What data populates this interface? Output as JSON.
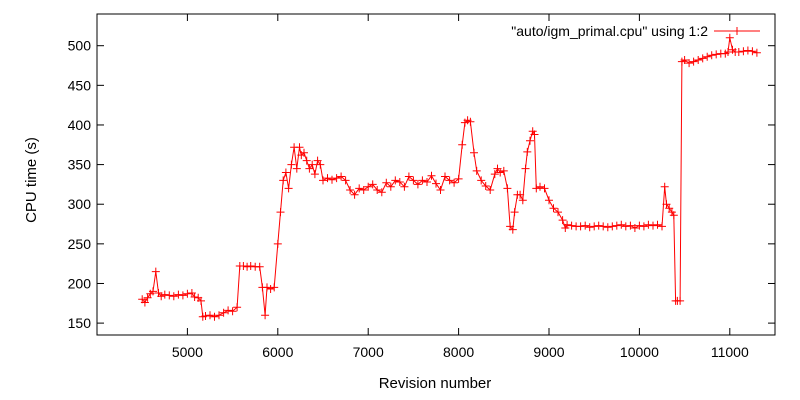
{
  "chart_data": {
    "type": "line",
    "xlabel": "Revision number",
    "ylabel": "CPU time (s)",
    "xlim": [
      4000,
      11500
    ],
    "ylim": [
      135,
      540
    ],
    "xticks": [
      5000,
      6000,
      7000,
      8000,
      9000,
      10000,
      11000
    ],
    "yticks": [
      150,
      200,
      250,
      300,
      350,
      400,
      450,
      500
    ],
    "grid": false,
    "legend_position": "top-right",
    "series": [
      {
        "name": "\"auto/igm_primal.cpu\" using 1:2",
        "color": "#ff0000",
        "marker": "plus",
        "points": [
          [
            4500,
            180
          ],
          [
            4530,
            176
          ],
          [
            4560,
            182
          ],
          [
            4590,
            187
          ],
          [
            4620,
            190
          ],
          [
            4650,
            215
          ],
          [
            4680,
            188
          ],
          [
            4710,
            184
          ],
          [
            4750,
            186
          ],
          [
            4800,
            185
          ],
          [
            4850,
            184
          ],
          [
            4900,
            186
          ],
          [
            4950,
            185
          ],
          [
            5000,
            187
          ],
          [
            5050,
            188
          ],
          [
            5080,
            183
          ],
          [
            5120,
            182
          ],
          [
            5150,
            178
          ],
          [
            5170,
            158
          ],
          [
            5200,
            159
          ],
          [
            5250,
            160
          ],
          [
            5300,
            158
          ],
          [
            5350,
            160
          ],
          [
            5400,
            163
          ],
          [
            5450,
            166
          ],
          [
            5500,
            165
          ],
          [
            5550,
            170
          ],
          [
            5580,
            222
          ],
          [
            5620,
            222
          ],
          [
            5660,
            221
          ],
          [
            5700,
            222
          ],
          [
            5750,
            221
          ],
          [
            5800,
            221
          ],
          [
            5830,
            195
          ],
          [
            5860,
            160
          ],
          [
            5880,
            195
          ],
          [
            5920,
            193
          ],
          [
            5960,
            195
          ],
          [
            6000,
            250
          ],
          [
            6030,
            290
          ],
          [
            6060,
            330
          ],
          [
            6090,
            340
          ],
          [
            6120,
            320
          ],
          [
            6150,
            350
          ],
          [
            6180,
            372
          ],
          [
            6210,
            345
          ],
          [
            6240,
            372
          ],
          [
            6260,
            362
          ],
          [
            6290,
            365
          ],
          [
            6320,
            355
          ],
          [
            6350,
            345
          ],
          [
            6380,
            350
          ],
          [
            6410,
            338
          ],
          [
            6440,
            355
          ],
          [
            6470,
            350
          ],
          [
            6500,
            330
          ],
          [
            6550,
            333
          ],
          [
            6600,
            331
          ],
          [
            6650,
            333
          ],
          [
            6700,
            335
          ],
          [
            6750,
            330
          ],
          [
            6800,
            318
          ],
          [
            6850,
            312
          ],
          [
            6900,
            320
          ],
          [
            6950,
            318
          ],
          [
            7000,
            322
          ],
          [
            7050,
            325
          ],
          [
            7100,
            318
          ],
          [
            7150,
            315
          ],
          [
            7200,
            327
          ],
          [
            7250,
            322
          ],
          [
            7300,
            330
          ],
          [
            7350,
            328
          ],
          [
            7400,
            322
          ],
          [
            7450,
            335
          ],
          [
            7500,
            330
          ],
          [
            7550,
            325
          ],
          [
            7600,
            330
          ],
          [
            7650,
            328
          ],
          [
            7700,
            336
          ],
          [
            7750,
            326
          ],
          [
            7800,
            318
          ],
          [
            7850,
            335
          ],
          [
            7900,
            330
          ],
          [
            7950,
            327
          ],
          [
            8000,
            332
          ],
          [
            8040,
            375
          ],
          [
            8070,
            403
          ],
          [
            8100,
            406
          ],
          [
            8130,
            404
          ],
          [
            8170,
            365
          ],
          [
            8200,
            342
          ],
          [
            8250,
            330
          ],
          [
            8300,
            323
          ],
          [
            8350,
            318
          ],
          [
            8400,
            338
          ],
          [
            8430,
            345
          ],
          [
            8460,
            340
          ],
          [
            8500,
            342
          ],
          [
            8540,
            320
          ],
          [
            8570,
            272
          ],
          [
            8600,
            268
          ],
          [
            8620,
            290
          ],
          [
            8650,
            312
          ],
          [
            8680,
            312
          ],
          [
            8710,
            305
          ],
          [
            8740,
            345
          ],
          [
            8760,
            366
          ],
          [
            8790,
            380
          ],
          [
            8820,
            392
          ],
          [
            8840,
            388
          ],
          [
            8860,
            320
          ],
          [
            8900,
            322
          ],
          [
            8950,
            320
          ],
          [
            9000,
            305
          ],
          [
            9050,
            295
          ],
          [
            9100,
            290
          ],
          [
            9150,
            280
          ],
          [
            9180,
            270
          ],
          [
            9200,
            274
          ],
          [
            9250,
            273
          ],
          [
            9300,
            272
          ],
          [
            9350,
            272
          ],
          [
            9400,
            273
          ],
          [
            9450,
            271
          ],
          [
            9500,
            272
          ],
          [
            9550,
            273
          ],
          [
            9600,
            272
          ],
          [
            9650,
            271
          ],
          [
            9700,
            272
          ],
          [
            9750,
            273
          ],
          [
            9800,
            274
          ],
          [
            9850,
            272
          ],
          [
            9900,
            273
          ],
          [
            9950,
            270
          ],
          [
            10000,
            273
          ],
          [
            10050,
            272
          ],
          [
            10100,
            274
          ],
          [
            10150,
            273
          ],
          [
            10200,
            274
          ],
          [
            10250,
            272
          ],
          [
            10280,
            322
          ],
          [
            10300,
            300
          ],
          [
            10330,
            295
          ],
          [
            10360,
            290
          ],
          [
            10380,
            286
          ],
          [
            10400,
            178
          ],
          [
            10420,
            178
          ],
          [
            10450,
            178
          ],
          [
            10470,
            480
          ],
          [
            10500,
            482
          ],
          [
            10550,
            478
          ],
          [
            10600,
            480
          ],
          [
            10650,
            482
          ],
          [
            10700,
            484
          ],
          [
            10750,
            486
          ],
          [
            10800,
            488
          ],
          [
            10850,
            489
          ],
          [
            10900,
            490
          ],
          [
            10950,
            490
          ],
          [
            10980,
            492
          ],
          [
            11000,
            510
          ],
          [
            11030,
            495
          ],
          [
            11060,
            492
          ],
          [
            11100,
            492
          ],
          [
            11150,
            493
          ],
          [
            11200,
            494
          ],
          [
            11250,
            493
          ],
          [
            11300,
            491
          ]
        ]
      }
    ]
  }
}
